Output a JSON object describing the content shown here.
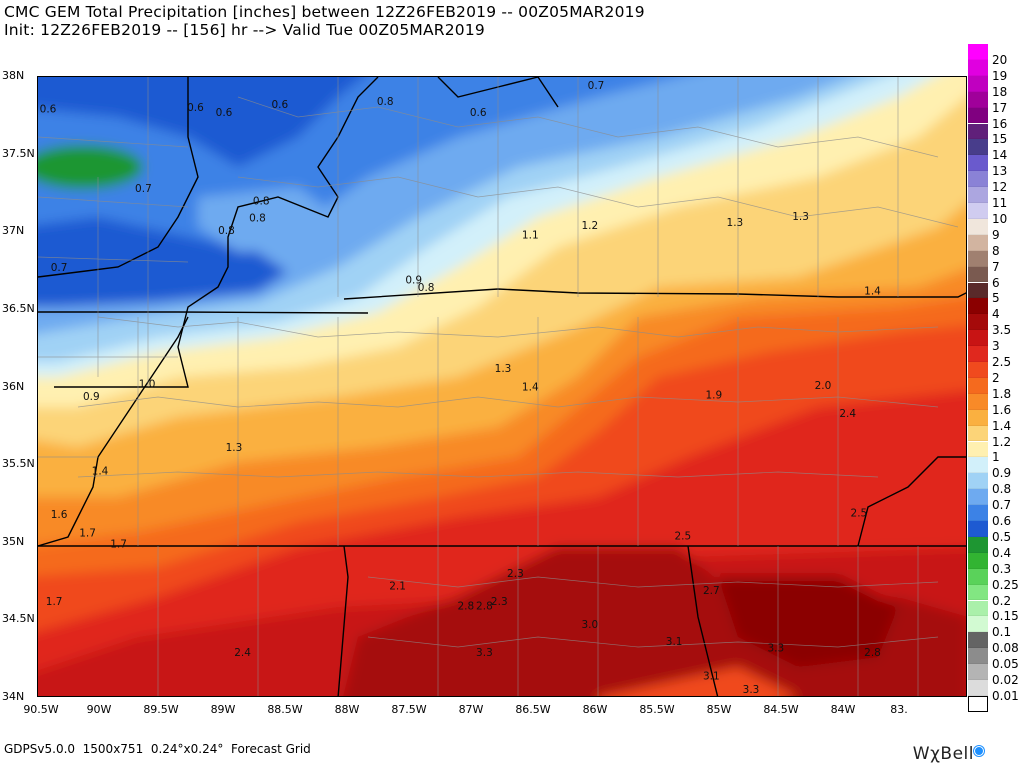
{
  "header": {
    "line1": "CMC GEM Total Precipitation [inches] between 12Z26FEB2019 -- 00Z05MAR2019",
    "line2": "Init: 12Z26FEB2019 -- [156] hr --> Valid Tue 00Z05MAR2019"
  },
  "map": {
    "lat_labels": [
      "38N",
      "37.5N",
      "37N",
      "36.5N",
      "36N",
      "35.5N",
      "35N",
      "34.5N",
      "34N"
    ],
    "lon_labels": [
      "90.5W",
      "90W",
      "89.5W",
      "89W",
      "88.5W",
      "88W",
      "87.5W",
      "87W",
      "86.5W",
      "86W",
      "85.5W",
      "85W",
      "84.5W",
      "84W",
      "83."
    ],
    "values": [
      {
        "t": "0.6",
        "x": -90.47,
        "y": 37.77
      },
      {
        "t": "0.6",
        "x": -89.23,
        "y": 37.78
      },
      {
        "t": "0.6",
        "x": -89.0,
        "y": 37.75
      },
      {
        "t": "0.6",
        "x": -88.55,
        "y": 37.8
      },
      {
        "t": "0.8",
        "x": -87.7,
        "y": 37.82
      },
      {
        "t": "0.6",
        "x": -86.95,
        "y": 37.75
      },
      {
        "t": "0.7",
        "x": -86.0,
        "y": 37.97
      },
      {
        "t": "0.7",
        "x": -89.65,
        "y": 37.26
      },
      {
        "t": "0.8",
        "x": -88.7,
        "y": 37.18
      },
      {
        "t": "0.8",
        "x": -88.73,
        "y": 37.07
      },
      {
        "t": "0.8",
        "x": -88.98,
        "y": 36.99
      },
      {
        "t": "0.7",
        "x": -90.33,
        "y": 36.75
      },
      {
        "t": "1.1",
        "x": -86.53,
        "y": 36.96
      },
      {
        "t": "1.2",
        "x": -86.05,
        "y": 37.02
      },
      {
        "t": "1.3",
        "x": -84.88,
        "y": 37.04
      },
      {
        "t": "1.3",
        "x": -84.35,
        "y": 37.08
      },
      {
        "t": "0.9",
        "x": -87.47,
        "y": 36.67
      },
      {
        "t": "0.8",
        "x": -87.37,
        "y": 36.62
      },
      {
        "t": "1.4",
        "x": -83.77,
        "y": 36.6
      },
      {
        "t": "1.3",
        "x": -86.75,
        "y": 36.1
      },
      {
        "t": "1.4",
        "x": -86.53,
        "y": 35.98
      },
      {
        "t": "1.0",
        "x": -89.62,
        "y": 36.0
      },
      {
        "t": "0.9",
        "x": -90.07,
        "y": 35.92
      },
      {
        "t": "1.9",
        "x": -85.05,
        "y": 35.93
      },
      {
        "t": "2.0",
        "x": -84.17,
        "y": 35.99
      },
      {
        "t": "2.4",
        "x": -83.97,
        "y": 35.81
      },
      {
        "t": "1.3",
        "x": -88.92,
        "y": 35.59
      },
      {
        "t": "1.4",
        "x": -90.0,
        "y": 35.44
      },
      {
        "t": "1.6",
        "x": -90.33,
        "y": 35.16
      },
      {
        "t": "1.7",
        "x": -90.1,
        "y": 35.04
      },
      {
        "t": "1.7",
        "x": -89.85,
        "y": 34.97
      },
      {
        "t": "2.5",
        "x": -83.88,
        "y": 35.17
      },
      {
        "t": "2.5",
        "x": -85.3,
        "y": 35.02
      },
      {
        "t": "2.3",
        "x": -86.65,
        "y": 34.78
      },
      {
        "t": "2.1",
        "x": -87.6,
        "y": 34.7
      },
      {
        "t": "2.7",
        "x": -85.07,
        "y": 34.67
      },
      {
        "t": "2.3",
        "x": -86.78,
        "y": 34.6
      },
      {
        "t": "2.8",
        "x": -87.05,
        "y": 34.57
      },
      {
        "t": "2.8",
        "x": -86.9,
        "y": 34.57
      },
      {
        "t": "1.7",
        "x": -90.37,
        "y": 34.6
      },
      {
        "t": "3.0",
        "x": -86.05,
        "y": 34.45
      },
      {
        "t": "2.4",
        "x": -88.85,
        "y": 34.27
      },
      {
        "t": "3.1",
        "x": -85.37,
        "y": 34.34
      },
      {
        "t": "3.3",
        "x": -86.9,
        "y": 34.27
      },
      {
        "t": "3.3",
        "x": -84.55,
        "y": 34.3
      },
      {
        "t": "2.8",
        "x": -83.77,
        "y": 34.27
      },
      {
        "t": "3.1",
        "x": -85.07,
        "y": 34.12
      },
      {
        "t": "3.3",
        "x": -84.75,
        "y": 34.01
      }
    ]
  },
  "legend": {
    "items": [
      {
        "label": "20",
        "color": "#ff00ff"
      },
      {
        "label": "19",
        "color": "#e000e0"
      },
      {
        "label": "18",
        "color": "#c000c0"
      },
      {
        "label": "17",
        "color": "#a0009a"
      },
      {
        "label": "16",
        "color": "#800080"
      },
      {
        "label": "15",
        "color": "#60207a"
      },
      {
        "label": "14",
        "color": "#483d8b"
      },
      {
        "label": "13",
        "color": "#6a5acd"
      },
      {
        "label": "12",
        "color": "#8a82d6"
      },
      {
        "label": "11",
        "color": "#aca6e0"
      },
      {
        "label": "10",
        "color": "#d0ccf0"
      },
      {
        "label": "9",
        "color": "#f0e6dc"
      },
      {
        "label": "8",
        "color": "#d2b4a0"
      },
      {
        "label": "7",
        "color": "#a08070"
      },
      {
        "label": "6",
        "color": "#7a5a50"
      },
      {
        "label": "5",
        "color": "#5a2a2a"
      },
      {
        "label": "4",
        "color": "#8b0000"
      },
      {
        "label": "3.5",
        "color": "#a50a0a"
      },
      {
        "label": "3",
        "color": "#c81414"
      },
      {
        "label": "2.5",
        "color": "#e0281e"
      },
      {
        "label": "2",
        "color": "#f04a1e"
      },
      {
        "label": "1.8",
        "color": "#f56a1e"
      },
      {
        "label": "1.6",
        "color": "#f88a28"
      },
      {
        "label": "1.4",
        "color": "#fab040"
      },
      {
        "label": "1.2",
        "color": "#fcd478"
      },
      {
        "label": "1",
        "color": "#fff0b0"
      },
      {
        "label": "0.9",
        "color": "#d2f0fa"
      },
      {
        "label": "0.8",
        "color": "#a0d2f5"
      },
      {
        "label": "0.7",
        "color": "#6eaaf0"
      },
      {
        "label": "0.6",
        "color": "#3c82e6"
      },
      {
        "label": "0.5",
        "color": "#1e5ad2"
      },
      {
        "label": "0.4",
        "color": "#1e9632"
      },
      {
        "label": "0.3",
        "color": "#32b432"
      },
      {
        "label": "0.25",
        "color": "#5ad25a"
      },
      {
        "label": "0.2",
        "color": "#82e682"
      },
      {
        "label": "0.15",
        "color": "#aaf0aa"
      },
      {
        "label": "0.1",
        "color": "#d2fad2"
      },
      {
        "label": "0.08",
        "color": "#646464"
      },
      {
        "label": "0.05",
        "color": "#8c8c8c"
      },
      {
        "label": "0.02",
        "color": "#b4b4b4"
      },
      {
        "label": "0.01",
        "color": "#dcdcdc"
      },
      {
        "label": "",
        "color": "#ffffff"
      }
    ]
  },
  "footer": "GDPSv5.0.0  1500x751  0.24°x0.24°  Forecast Grid",
  "brand": "WχBell"
}
